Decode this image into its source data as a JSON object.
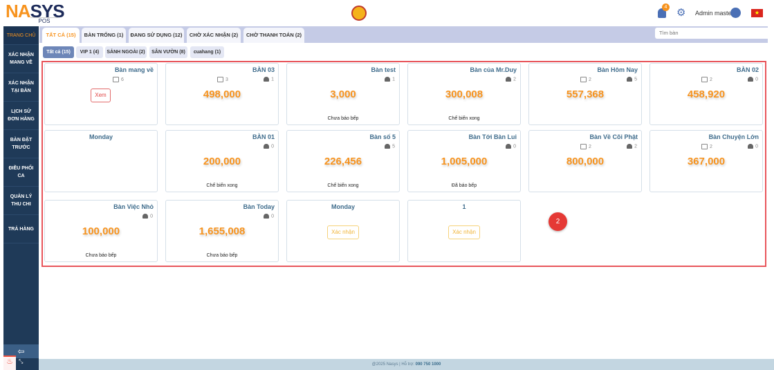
{
  "header": {
    "logo": "NASYS",
    "logo_sub": "POS",
    "notifications": "4",
    "user": "Admin master",
    "flag": "★"
  },
  "sidebar": {
    "items": [
      "TRANG CHỦ",
      "XÁC NHẬN MANG VỀ",
      "XÁC NHẬN TẠI BÀN",
      "LỊCH SỬ ĐƠN HÀNG",
      "BÀN ĐẶT TRƯỚC",
      "ĐIỀU PHỐI CA",
      "QUẢN LÝ THU CHI",
      "TRẢ HÀNG"
    ],
    "collapse": "⇦",
    "expand": "⤡"
  },
  "tabs": [
    "TẤT CẢ (15)",
    "BÀN TRỐNG (1)",
    "ĐANG SỬ DỤNG (12)",
    "CHỜ XÁC NHẬN (2)",
    "CHỜ THANH TOÁN (2)"
  ],
  "search": {
    "placeholder": "Tìm bàn"
  },
  "subtabs": [
    "Tất cả (15)",
    "VIP 1 (4)",
    "SẢNH NGOÀI (2)",
    "SÂN VƯỜN (8)",
    "cuahang (1)"
  ],
  "tables": [
    {
      "name": "Bàn mang về",
      "orders": "6",
      "button": "Xem",
      "button_type": "red"
    },
    {
      "name": "BÀN 03",
      "orders": "3",
      "persons": "1",
      "amount": "498,000"
    },
    {
      "name": "Bàn test",
      "persons": "1",
      "amount": "3,000",
      "status": "Chưa báo bếp"
    },
    {
      "name": "Bàn của Mr.Duy",
      "persons": "2",
      "amount": "300,008",
      "status": "Chế biến xong"
    },
    {
      "name": "Bàn Hôm Nay",
      "orders": "2",
      "persons": "5",
      "amount": "557,368"
    },
    {
      "name": "BÀN 02",
      "orders": "2",
      "persons": "0",
      "amount": "458,920"
    },
    {
      "name": "Monday",
      "center": true
    },
    {
      "name": "BÀN 01",
      "persons": "0",
      "amount": "200,000",
      "status": "Chế biến xong"
    },
    {
      "name": "Bàn số 5",
      "persons": "5",
      "amount": "226,456",
      "status": "Chế biến xong"
    },
    {
      "name": "Bàn Tới Bàn Lui",
      "persons": "0",
      "amount": "1,005,000",
      "status": "Đã báo bếp"
    },
    {
      "name": "Bàn Về Cõi Phật",
      "orders": "2",
      "persons": "2",
      "amount": "800,000"
    },
    {
      "name": "Bàn Chuyện Lớn",
      "orders": "2",
      "persons": "0",
      "amount": "367,000"
    },
    {
      "name": "Bàn Việc Nhỏ",
      "persons": "0",
      "amount": "100,000",
      "status": "Chưa báo bếp"
    },
    {
      "name": "Bàn Today",
      "persons": "0",
      "amount": "1,655,008",
      "status": "Chưa báo bếp"
    },
    {
      "name": "Monday",
      "center": true,
      "button": "Xác nhận",
      "button_type": "yellow"
    },
    {
      "name": "1",
      "center": true,
      "button": "Xác nhận",
      "button_type": "yellow"
    }
  ],
  "step_badge": "2",
  "footer": {
    "text": "@2025 Nasys | Hỗ trợ: ",
    "phone": "090 750 1000"
  },
  "colors": {
    "accent": "#f7931e",
    "sidebar": "#1f3a58",
    "highlight_border": "#e8545a"
  }
}
